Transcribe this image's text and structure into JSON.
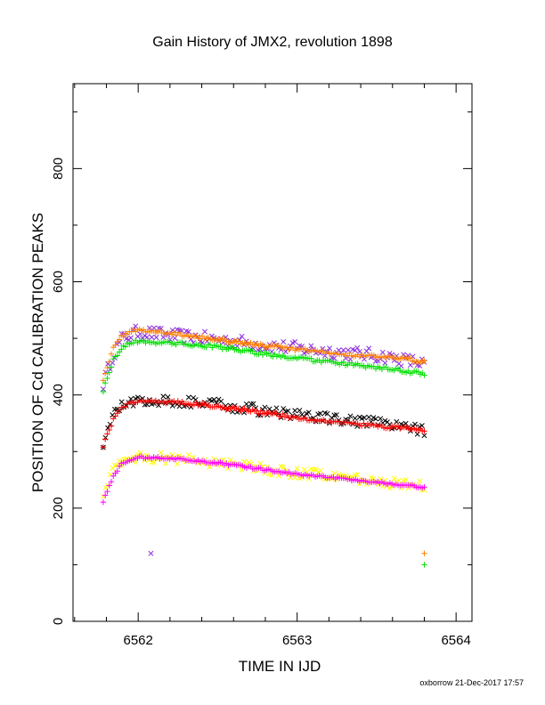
{
  "chart_data": {
    "type": "scatter",
    "title": "Gain History of JMX2, revolution 1898",
    "xlabel": "TIME IN IJD",
    "ylabel": "POSITION OF Cd CALIBRATION PEAKS",
    "xlim": [
      6561.59,
      6564.1
    ],
    "ylim": [
      0,
      950
    ],
    "x_ticks": [
      6562,
      6563,
      6564
    ],
    "y_ticks": [
      0,
      200,
      400,
      600,
      800
    ],
    "footer": "oxborrow 21-Dec-2017 17:57",
    "grid": false,
    "series": [
      {
        "color": "#8a2be2",
        "marker": "x",
        "scatter": 12,
        "points": [
          [
            6561.78,
            420
          ],
          [
            6561.84,
            470
          ],
          [
            6561.9,
            500
          ],
          [
            6562.0,
            512
          ],
          [
            6562.2,
            505
          ],
          [
            6562.5,
            498
          ],
          [
            6562.8,
            488
          ],
          [
            6563.0,
            482
          ],
          [
            6563.3,
            475
          ],
          [
            6563.55,
            468
          ],
          [
            6563.8,
            455
          ]
        ],
        "outliers": [
          [
            6562.08,
            120
          ]
        ]
      },
      {
        "color": "#ff8000",
        "marker": "+",
        "scatter": 3,
        "points": [
          [
            6561.78,
            428
          ],
          [
            6561.84,
            480
          ],
          [
            6561.9,
            505
          ],
          [
            6561.97,
            515
          ],
          [
            6562.2,
            510
          ],
          [
            6562.5,
            498
          ],
          [
            6562.8,
            487
          ],
          [
            6563.0,
            480
          ],
          [
            6563.3,
            472
          ],
          [
            6563.6,
            465
          ],
          [
            6563.8,
            460
          ]
        ],
        "outliers": [
          [
            6563.8,
            120
          ]
        ]
      },
      {
        "color": "#00e000",
        "marker": "+",
        "scatter": 3,
        "points": [
          [
            6561.78,
            408
          ],
          [
            6561.84,
            460
          ],
          [
            6561.9,
            485
          ],
          [
            6561.98,
            495
          ],
          [
            6562.2,
            492
          ],
          [
            6562.5,
            485
          ],
          [
            6562.8,
            472
          ],
          [
            6563.0,
            465
          ],
          [
            6563.3,
            455
          ],
          [
            6563.6,
            445
          ],
          [
            6563.8,
            437
          ]
        ],
        "outliers": [
          [
            6563.8,
            100
          ]
        ]
      },
      {
        "color": "#000000",
        "marker": "x",
        "scatter": 10,
        "points": [
          [
            6561.78,
            315
          ],
          [
            6561.84,
            365
          ],
          [
            6561.9,
            380
          ],
          [
            6562.0,
            392
          ],
          [
            6562.2,
            390
          ],
          [
            6562.5,
            383
          ],
          [
            6562.8,
            372
          ],
          [
            6563.0,
            365
          ],
          [
            6563.3,
            355
          ],
          [
            6563.55,
            348
          ],
          [
            6563.8,
            338
          ]
        ],
        "outliers": []
      },
      {
        "color": "#ff0000",
        "marker": "+",
        "scatter": 3,
        "points": [
          [
            6561.78,
            310
          ],
          [
            6561.84,
            355
          ],
          [
            6561.9,
            380
          ],
          [
            6562.0,
            390
          ],
          [
            6562.2,
            388
          ],
          [
            6562.5,
            380
          ],
          [
            6562.8,
            368
          ],
          [
            6563.0,
            360
          ],
          [
            6563.3,
            350
          ],
          [
            6563.6,
            343
          ],
          [
            6563.8,
            337
          ]
        ],
        "outliers": []
      },
      {
        "color": "#ffff00",
        "marker": "x",
        "scatter": 10,
        "points": [
          [
            6561.78,
            228
          ],
          [
            6561.84,
            270
          ],
          [
            6561.9,
            280
          ],
          [
            6562.0,
            290
          ],
          [
            6562.2,
            288
          ],
          [
            6562.5,
            280
          ],
          [
            6562.8,
            268
          ],
          [
            6563.0,
            262
          ],
          [
            6563.3,
            255
          ],
          [
            6563.55,
            245
          ],
          [
            6563.8,
            237
          ]
        ],
        "outliers": []
      },
      {
        "color": "#ff00ff",
        "marker": "+",
        "scatter": 2,
        "points": [
          [
            6561.78,
            212
          ],
          [
            6561.84,
            255
          ],
          [
            6561.9,
            280
          ],
          [
            6562.0,
            290
          ],
          [
            6562.2,
            288
          ],
          [
            6562.5,
            280
          ],
          [
            6562.8,
            268
          ],
          [
            6563.0,
            260
          ],
          [
            6563.3,
            252
          ],
          [
            6563.6,
            243
          ],
          [
            6563.8,
            237
          ]
        ],
        "outliers": []
      }
    ]
  }
}
